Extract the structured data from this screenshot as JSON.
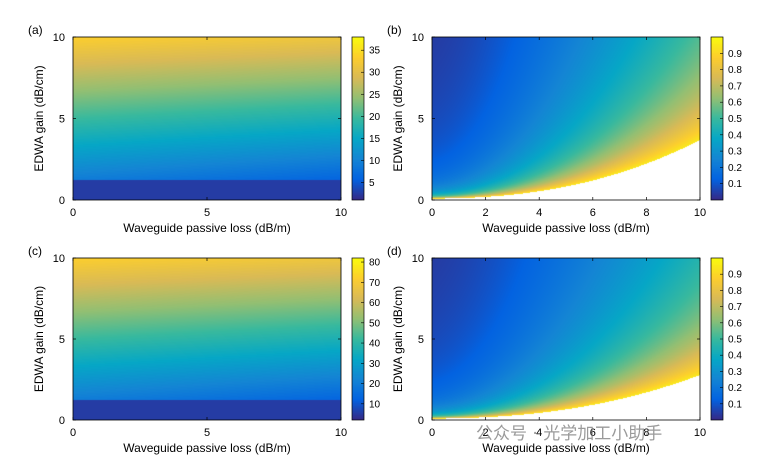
{
  "watermark": "公众号 · 光学加工小助手",
  "chart_data": [
    {
      "type": "heatmap",
      "panel_label": "(a)",
      "xlabel": "Waveguide passive loss (dB/m)",
      "ylabel": "EDWA gain (dB/cm)",
      "xlim": [
        0,
        10
      ],
      "ylim": [
        0,
        10
      ],
      "xticks": [
        "0",
        "5",
        "10"
      ],
      "yticks": [
        "0",
        "5",
        "10"
      ],
      "colorbar": {
        "range": [
          1,
          38
        ],
        "ticks": [
          "5",
          "10",
          "15",
          "20",
          "25",
          "30",
          "35"
        ],
        "tick_values": [
          5,
          10,
          15,
          20,
          25,
          30,
          35
        ]
      },
      "colormap": [
        "#352a87",
        "#0363e1",
        "#1485d4",
        "#06a7c6",
        "#38b99e",
        "#92bf73",
        "#d9ba56",
        "#fcce2e",
        "#f9fb0e"
      ],
      "value_model": "gain_minus_loss"
    },
    {
      "type": "heatmap",
      "panel_label": "(b)",
      "xlabel": "Waveguide passive loss (dB/m)",
      "ylabel": "EDWA gain (dB/cm)",
      "xlim": [
        0,
        10
      ],
      "ylim": [
        0,
        10
      ],
      "xticks": [
        "0",
        "2",
        "4",
        "6",
        "8",
        "10"
      ],
      "yticks": [
        "0",
        "5",
        "10"
      ],
      "colorbar": {
        "range": [
          0,
          1
        ],
        "ticks": [
          "0.1",
          "0.2",
          "0.3",
          "0.4",
          "0.5",
          "0.6",
          "0.7",
          "0.8",
          "0.9"
        ],
        "tick_values": [
          0.1,
          0.2,
          0.3,
          0.4,
          0.5,
          0.6,
          0.7,
          0.8,
          0.9
        ]
      },
      "colormap": [
        "#352a87",
        "#0363e1",
        "#1485d4",
        "#06a7c6",
        "#38b99e",
        "#92bf73",
        "#d9ba56",
        "#fcce2e",
        "#f9fb0e"
      ],
      "value_model": "loss_over_gain",
      "boundary_factor": 0.34
    },
    {
      "type": "heatmap",
      "panel_label": "(c)",
      "xlabel": "Waveguide passive loss (dB/m)",
      "ylabel": "EDWA gain (dB/cm)",
      "xlim": [
        0,
        10
      ],
      "ylim": [
        0,
        10
      ],
      "xticks": [
        "0",
        "5",
        "10"
      ],
      "yticks": [
        "0",
        "5",
        "10"
      ],
      "colorbar": {
        "range": [
          2,
          82
        ],
        "ticks": [
          "10",
          "20",
          "30",
          "40",
          "50",
          "60",
          "70",
          "80"
        ],
        "tick_values": [
          10,
          20,
          30,
          40,
          50,
          60,
          70,
          80
        ]
      },
      "colormap": [
        "#352a87",
        "#0363e1",
        "#1485d4",
        "#06a7c6",
        "#38b99e",
        "#92bf73",
        "#d9ba56",
        "#fcce2e",
        "#f9fb0e"
      ],
      "value_model": "gain_minus_loss"
    },
    {
      "type": "heatmap",
      "panel_label": "(d)",
      "xlabel": "Waveguide passive loss (dB/m)",
      "ylabel": "EDWA gain (dB/cm)",
      "xlim": [
        0,
        10
      ],
      "ylim": [
        0,
        10
      ],
      "xticks": [
        "0",
        "2",
        "4",
        "6",
        "8",
        "10"
      ],
      "yticks": [
        "0",
        "5",
        "10"
      ],
      "colorbar": {
        "range": [
          0,
          1
        ],
        "ticks": [
          "0.1",
          "0.2",
          "0.3",
          "0.4",
          "0.5",
          "0.6",
          "0.7",
          "0.8",
          "0.9"
        ],
        "tick_values": [
          0.1,
          0.2,
          0.3,
          0.4,
          0.5,
          0.6,
          0.7,
          0.8,
          0.9
        ]
      },
      "colormap": [
        "#352a87",
        "#0363e1",
        "#1485d4",
        "#06a7c6",
        "#38b99e",
        "#92bf73",
        "#d9ba56",
        "#fcce2e",
        "#f9fb0e"
      ],
      "value_model": "loss_over_gain",
      "boundary_factor": 0.25
    }
  ]
}
